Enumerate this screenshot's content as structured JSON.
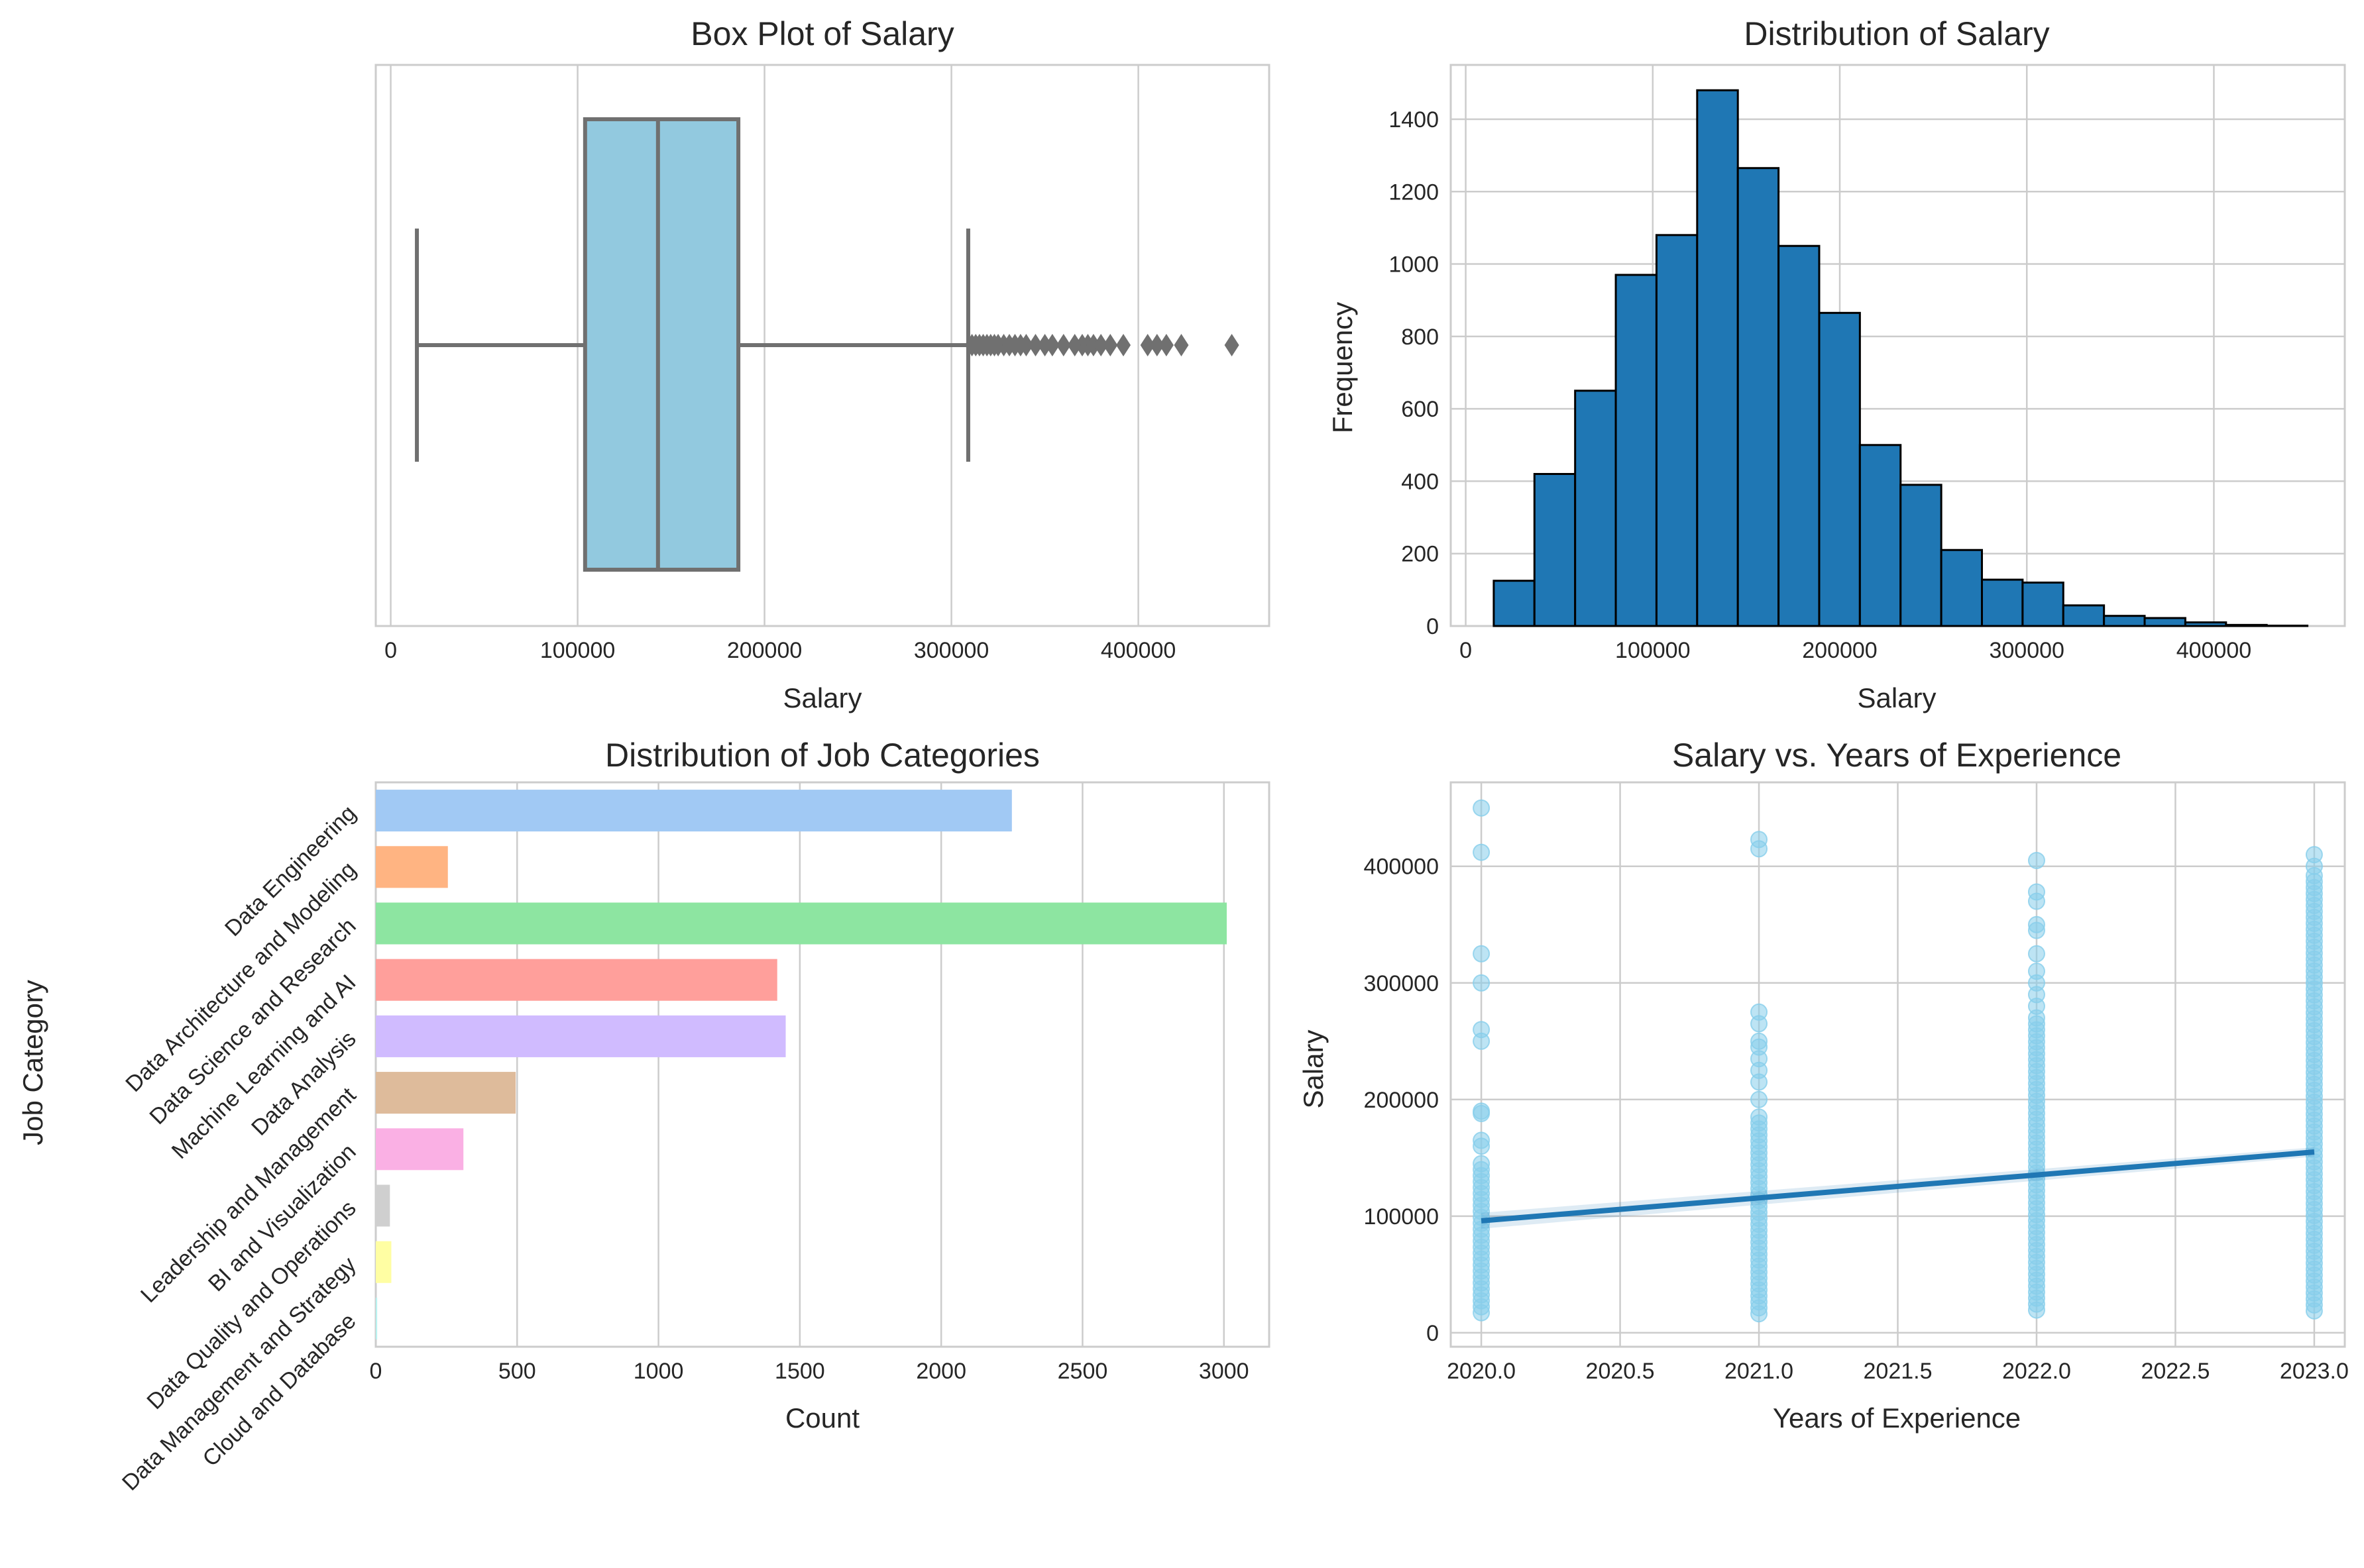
{
  "chart_data": [
    {
      "type": "box",
      "title": "Box Plot of Salary",
      "xlabel": "Salary",
      "ylabel": "",
      "xlim": [
        -8000,
        470000
      ],
      "xticks": [
        0,
        100000,
        200000,
        300000,
        400000
      ],
      "color": "#92c9df",
      "line_color": "#707070",
      "stats": {
        "whisker_low": 14000,
        "q1": 104000,
        "median": 143000,
        "q3": 186000,
        "whisker_high": 309000
      },
      "outliers": [
        311000,
        313000,
        315000,
        317000,
        319000,
        321000,
        323000,
        325000,
        328000,
        331000,
        334000,
        337000,
        340000,
        345000,
        350000,
        354000,
        360000,
        366000,
        370000,
        373000,
        376000,
        380000,
        385000,
        392000,
        405000,
        410000,
        415000,
        423000,
        450000
      ]
    },
    {
      "type": "bar",
      "subtype": "histogram",
      "title": "Distribution of Salary",
      "xlabel": "Salary",
      "ylabel": "Frequency",
      "xlim": [
        -8000,
        470000
      ],
      "ylim": [
        0,
        1550
      ],
      "xticks": [
        0,
        100000,
        200000,
        300000,
        400000
      ],
      "yticks": [
        0,
        200,
        400,
        600,
        800,
        1000,
        1200,
        1400
      ],
      "bar_color": "#1f77b4",
      "edge_color": "#000000",
      "bin_start": 15000,
      "bin_width": 21750,
      "values": [
        125,
        420,
        650,
        970,
        1080,
        1480,
        1265,
        1050,
        865,
        500,
        390,
        210,
        128,
        120,
        57,
        28,
        22,
        10,
        3,
        1
      ]
    },
    {
      "type": "bar",
      "orientation": "horizontal",
      "title": "Distribution of Job Categories",
      "xlabel": "Count",
      "ylabel": "Job Category",
      "xlim": [
        0,
        3160
      ],
      "xticks": [
        0,
        500,
        1000,
        1500,
        2000,
        2500,
        3000
      ],
      "categories": [
        "Data Engineering",
        "Data Architecture and Modeling",
        "Data Science and Research",
        "Machine Learning and AI",
        "Data Analysis",
        "Leadership and Management",
        "BI and Visualization",
        "Data Quality and Operations",
        "Data Management and Strategy",
        "Cloud and Database"
      ],
      "values": [
        2250,
        255,
        3010,
        1420,
        1450,
        495,
        310,
        50,
        55,
        5
      ],
      "colors": [
        "#a1c9f4",
        "#ffb482",
        "#8de5a1",
        "#ff9f9b",
        "#d0bbff",
        "#debb9b",
        "#fab0e4",
        "#cfcfcf",
        "#fffea3",
        "#b9f2f0"
      ]
    },
    {
      "type": "scatter",
      "title": "Salary vs. Years of Experience",
      "xlabel": "Years of Experience",
      "ylabel": "Salary",
      "xlim": [
        2019.89,
        2023.11
      ],
      "ylim": [
        -12000,
        472000
      ],
      "xticks": [
        "2020.0",
        "2020.5",
        "2021.0",
        "2021.5",
        "2022.0",
        "2022.5",
        "2023.0"
      ],
      "yticks": [
        0,
        100000,
        200000,
        300000,
        400000
      ],
      "point_color": "#87ceeb",
      "line_color": "#1f77b4",
      "series": [
        {
          "x": 2020,
          "ranges": [
            [
              15000,
              145000
            ]
          ],
          "values": [
            160000,
            165000,
            188000,
            190000,
            250000,
            260000,
            300000,
            325000,
            412000,
            450000
          ]
        },
        {
          "x": 2021,
          "ranges": [
            [
              15000,
              185000
            ]
          ],
          "values": [
            200000,
            215000,
            225000,
            235000,
            245000,
            250000,
            265000,
            275000,
            415000,
            423000
          ]
        },
        {
          "x": 2022,
          "ranges": [
            [
              15000,
              270000
            ]
          ],
          "values": [
            280000,
            290000,
            300000,
            310000,
            325000,
            345000,
            350000,
            370000,
            378000,
            405000
          ]
        },
        {
          "x": 2023,
          "ranges": [
            [
              15000,
              392000
            ]
          ],
          "values": [
            400000,
            410000
          ]
        }
      ],
      "regression": {
        "x": [
          2020,
          2023
        ],
        "y": [
          96000,
          155000
        ]
      }
    }
  ]
}
